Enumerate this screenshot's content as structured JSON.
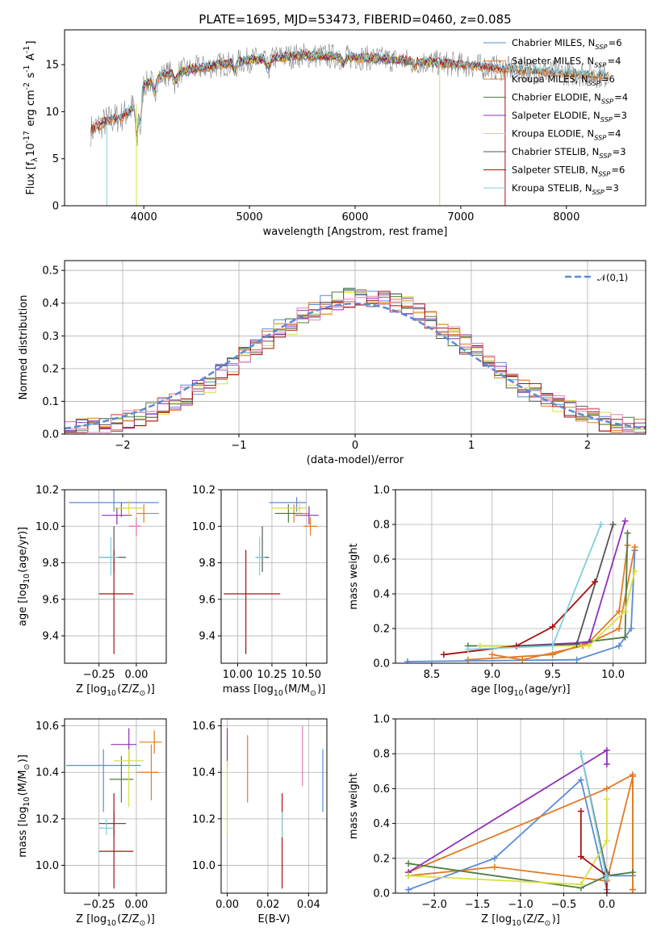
{
  "colors": {
    "Chabrier MILES": "#5b8bd6",
    "Salpeter MILES": "#e07b25",
    "Kroupa MILES": "#e07b25",
    "Chabrier ELODIE": "#4f7d44",
    "Salpeter ELODIE": "#8f30b6",
    "Kroupa ELODIE": "#d8e040",
    "Chabrier STELIB": "#555555",
    "Salpeter STELIB": "#a81010",
    "Kroupa STELIB": "#7fd0dc",
    "pink": "#e080c0",
    "normal": "#5b8bd6"
  },
  "chart_data": [
    {
      "type": "line",
      "title": "PLATE=1695, MJD=53473, FIBERID=0460, z=0.085",
      "xlabel": "wavelength [Angstrom, rest frame]",
      "ylabel": "Flux [f$_\\lambda$10$^{-17}$ erg cm$^{-2}$ s$^{-1}$ A$^{-1}$]",
      "xlim": [
        3250,
        8750
      ],
      "ylim": [
        0,
        18.7
      ],
      "xticks": [
        4000,
        5000,
        6000,
        7000,
        8000
      ],
      "yticks": [
        0,
        5,
        10,
        15
      ],
      "grid": false,
      "legend_position": "right",
      "continuum": [
        [
          3500,
          8.0
        ],
        [
          3650,
          9.0
        ],
        [
          3800,
          9.5
        ],
        [
          3950,
          11.0
        ],
        [
          4000,
          12.8
        ],
        [
          4200,
          14.0
        ],
        [
          4500,
          14.6
        ],
        [
          5000,
          15.5
        ],
        [
          5500,
          16.0
        ],
        [
          6000,
          15.8
        ],
        [
          6500,
          15.4
        ],
        [
          7000,
          15.0
        ],
        [
          7500,
          14.5
        ],
        [
          8000,
          14.1
        ],
        [
          8400,
          13.8
        ]
      ],
      "series": [
        {
          "name": "Chabrier MILES, N$_{SSP}$=6",
          "color_key": "Chabrier MILES",
          "range": [
            3500,
            8400
          ]
        },
        {
          "name": "Salpeter MILES, N$_{SSP}$=4",
          "color_key": "Salpeter MILES",
          "range": [
            3500,
            8400
          ]
        },
        {
          "name": "Kroupa MILES, N$_{SSP}$=6",
          "color_key": "Kroupa MILES",
          "range": [
            3500,
            8400
          ]
        },
        {
          "name": "Chabrier ELODIE, N$_{SSP}$=4",
          "color_key": "Chabrier ELODIE",
          "range": [
            4000,
            6800
          ]
        },
        {
          "name": "Salpeter ELODIE, N$_{SSP}$=3",
          "color_key": "Salpeter ELODIE",
          "range": [
            4000,
            6800
          ]
        },
        {
          "name": "Kroupa ELODIE, N$_{SSP}$=4",
          "color_key": "Kroupa ELODIE",
          "range": [
            3900,
            6800
          ]
        },
        {
          "name": "Chabrier STELIB, N$_{SSP}$=3",
          "color_key": "Chabrier STELIB",
          "range": [
            3500,
            8400
          ]
        },
        {
          "name": "Salpeter STELIB, N$_{SSP}$=6",
          "color_key": "Salpeter STELIB",
          "range": [
            3500,
            7400
          ]
        },
        {
          "name": "Kroupa STELIB, N$_{SSP}$=3",
          "color_key": "Kroupa STELIB",
          "range": [
            3650,
            8400
          ]
        }
      ]
    },
    {
      "type": "bar",
      "subtype": "step-histogram",
      "xlabel": "(data-model)/error",
      "ylabel": "Normed distribution",
      "xlim": [
        -2.5,
        2.5
      ],
      "ylim": [
        0,
        0.53
      ],
      "xticks": [
        -2,
        -1,
        0,
        1,
        2
      ],
      "yticks": [
        0.0,
        0.1,
        0.2,
        0.3,
        0.4,
        0.5
      ],
      "grid": true,
      "bin_width": 0.1,
      "bin_start": -2.5,
      "legend": "$\\mathcal{N}(0,1)$",
      "legend_position": "top-right",
      "normal_curve": {
        "mean": 0,
        "sigma": 1,
        "style": "dashed"
      }
    },
    {
      "type": "scatter",
      "subtype": "errorbar",
      "xlabel": "Z [log$_{10}$(Z/Z$_\\odot$)]",
      "ylabel": "age  [log$_{10}$(age/yr)]",
      "xlim": [
        -0.48,
        0.2
      ],
      "ylim": [
        9.25,
        10.2
      ],
      "xticks": [
        -0.25,
        0.0
      ],
      "yticks": [
        9.4,
        9.6,
        9.8,
        10.0,
        10.2
      ],
      "points": [
        {
          "c": "Chabrier MILES",
          "x": -0.15,
          "y": 10.13,
          "xerr": [
            0.3,
            0.3
          ],
          "yerr": [
            0.05,
            0.08
          ]
        },
        {
          "c": "Salpeter MILES",
          "x": 0.05,
          "y": 10.07,
          "xerr": [
            0.05,
            0.1
          ],
          "yerr": [
            0.05,
            0.05
          ]
        },
        {
          "c": "Kroupa MILES",
          "x": 0.0,
          "y": 10.0,
          "xerr": [
            0.05,
            0.03
          ],
          "yerr": [
            0.05,
            0.05
          ]
        },
        {
          "c": "Chabrier ELODIE",
          "x": -0.1,
          "y": 10.1,
          "xerr": [
            0.05,
            0.03
          ],
          "yerr": [
            0.05,
            0.03
          ]
        },
        {
          "c": "Salpeter ELODIE",
          "x": -0.13,
          "y": 10.06,
          "xerr": [
            0.1,
            0.1
          ],
          "yerr": [
            0.05,
            0.04
          ]
        },
        {
          "c": "Kroupa ELODIE",
          "x": -0.05,
          "y": 10.1,
          "xerr": [
            0.1,
            0.1
          ],
          "yerr": [
            0.04,
            0.04
          ]
        },
        {
          "c": "Chabrier STELIB",
          "x": -0.15,
          "y": 9.83,
          "xerr": [
            0.1,
            0.08
          ],
          "yerr": [
            0.08,
            0.17
          ]
        },
        {
          "c": "Salpeter STELIB",
          "x": -0.15,
          "y": 9.63,
          "xerr": [
            0.1,
            0.13
          ],
          "yerr": [
            0.33,
            0.24
          ]
        },
        {
          "c": "Kroupa STELIB",
          "x": -0.17,
          "y": 9.83,
          "xerr": [
            0.08,
            0.05
          ],
          "yerr": [
            0.1,
            0.11
          ]
        },
        {
          "c": "pink",
          "x": 0.0,
          "y": 10.0,
          "xerr": [
            0.05,
            0.03
          ],
          "yerr": [
            0.04,
            0.04
          ]
        }
      ]
    },
    {
      "type": "scatter",
      "subtype": "errorbar",
      "xlabel": "mass [log$_{10}$(M/M$_\\odot$)]",
      "ylabel": "",
      "xlim": [
        9.88,
        10.65
      ],
      "ylim": [
        9.25,
        10.2
      ],
      "xticks": [
        10.0,
        10.25,
        10.5
      ],
      "yticks": [
        9.4,
        9.6,
        9.8,
        10.0,
        10.2
      ],
      "points": [
        {
          "c": "Chabrier MILES",
          "x": 10.43,
          "y": 10.13,
          "xerr": [
            0.2,
            0.07
          ],
          "yerr": [
            0.05,
            0.03
          ]
        },
        {
          "c": "Salpeter MILES",
          "x": 10.41,
          "y": 10.07,
          "xerr": [
            0.13,
            0.11
          ],
          "yerr": [
            0.05,
            0.05
          ]
        },
        {
          "c": "Kroupa MILES",
          "x": 10.53,
          "y": 10.0,
          "xerr": [
            0.05,
            0.05
          ],
          "yerr": [
            0.05,
            0.05
          ]
        },
        {
          "c": "Chabrier ELODIE",
          "x": 10.37,
          "y": 10.07,
          "xerr": [
            0.1,
            0.1
          ],
          "yerr": [
            0.05,
            0.05
          ]
        },
        {
          "c": "Salpeter ELODIE",
          "x": 10.52,
          "y": 10.06,
          "xerr": [
            0.1,
            0.07
          ],
          "yerr": [
            0.05,
            0.05
          ]
        },
        {
          "c": "Kroupa ELODIE",
          "x": 10.45,
          "y": 10.1,
          "xerr": [
            0.2,
            0.05
          ],
          "yerr": [
            0.04,
            0.04
          ]
        },
        {
          "c": "Chabrier STELIB",
          "x": 10.18,
          "y": 9.83,
          "xerr": [
            0.05,
            0.05
          ],
          "yerr": [
            0.08,
            0.17
          ]
        },
        {
          "c": "Salpeter STELIB",
          "x": 10.06,
          "y": 9.63,
          "xerr": [
            0.16,
            0.25
          ],
          "yerr": [
            0.33,
            0.24
          ]
        },
        {
          "c": "Kroupa STELIB",
          "x": 10.16,
          "y": 9.83,
          "xerr": [
            0.03,
            0.04
          ],
          "yerr": [
            0.1,
            0.11
          ]
        }
      ]
    },
    {
      "type": "line",
      "xlabel": "age  [log$_{10}$(age/yr)]",
      "ylabel": "mass weight",
      "xlim": [
        8.2,
        10.27
      ],
      "ylim": [
        0,
        1.0
      ],
      "xticks": [
        8.5,
        9.0,
        9.5,
        10.0
      ],
      "yticks": [
        0.0,
        0.2,
        0.4,
        0.6,
        0.8,
        1.0
      ],
      "grid": true,
      "series": [
        {
          "c": "Chabrier MILES",
          "x": [
            8.3,
            9.7,
            10.05,
            10.15,
            10.18
          ],
          "y": [
            0.01,
            0.02,
            0.1,
            0.2,
            0.65
          ]
        },
        {
          "c": "Salpeter MILES",
          "x": [
            9.0,
            9.25,
            9.75,
            10.05,
            10.18
          ],
          "y": [
            0.05,
            0.02,
            0.1,
            0.2,
            0.67
          ]
        },
        {
          "c": "Kroupa MILES",
          "x": [
            8.8,
            9.5,
            9.8,
            10.05,
            10.12
          ],
          "y": [
            0.02,
            0.05,
            0.12,
            0.3,
            0.68
          ]
        },
        {
          "c": "Chabrier ELODIE",
          "x": [
            8.8,
            9.5,
            10.1,
            10.12
          ],
          "y": [
            0.1,
            0.1,
            0.15,
            0.75
          ]
        },
        {
          "c": "Salpeter ELODIE",
          "x": [
            9.2,
            9.8,
            10.1
          ],
          "y": [
            0.1,
            0.12,
            0.82
          ]
        },
        {
          "c": "Kroupa ELODIE",
          "x": [
            8.9,
            9.8,
            10.1,
            10.18
          ],
          "y": [
            0.1,
            0.1,
            0.3,
            0.53
          ]
        },
        {
          "c": "Chabrier STELIB",
          "x": [
            9.2,
            9.7,
            10.0
          ],
          "y": [
            0.1,
            0.11,
            0.8
          ]
        },
        {
          "c": "Salpeter STELIB",
          "x": [
            8.6,
            9.2,
            9.5,
            9.85
          ],
          "y": [
            0.05,
            0.1,
            0.21,
            0.47
          ]
        },
        {
          "c": "Kroupa STELIB",
          "x": [
            8.8,
            9.5,
            9.9
          ],
          "y": [
            0.08,
            0.1,
            0.8
          ]
        }
      ]
    },
    {
      "type": "scatter",
      "subtype": "errorbar",
      "xlabel": "Z [log$_{10}$(Z/Z$_\\odot$)]",
      "ylabel": "mass [log$_{10}$(M/M$_\\odot$)]",
      "xlim": [
        -0.48,
        0.2
      ],
      "ylim": [
        9.88,
        10.63
      ],
      "xticks": [
        -0.25,
        0.0
      ],
      "yticks": [
        10.0,
        10.2,
        10.4,
        10.6
      ],
      "points": [
        {
          "c": "Chabrier MILES",
          "x": -0.22,
          "y": 10.43,
          "xerr": [
            0.25,
            0.25
          ],
          "yerr": [
            0.2,
            0.07
          ]
        },
        {
          "c": "Salpeter MILES",
          "x": 0.1,
          "y": 10.4,
          "xerr": [
            0.1,
            0.05
          ],
          "yerr": [
            0.12,
            0.12
          ]
        },
        {
          "c": "Kroupa MILES",
          "x": 0.12,
          "y": 10.53,
          "xerr": [
            0.1,
            0.05
          ],
          "yerr": [
            0.05,
            0.05
          ]
        },
        {
          "c": "Chabrier ELODIE",
          "x": -0.1,
          "y": 10.37,
          "xerr": [
            0.08,
            0.08
          ],
          "yerr": [
            0.1,
            0.1
          ]
        },
        {
          "c": "Salpeter ELODIE",
          "x": -0.05,
          "y": 10.52,
          "xerr": [
            0.12,
            0.05
          ],
          "yerr": [
            0.1,
            0.07
          ]
        },
        {
          "c": "Kroupa ELODIE",
          "x": -0.05,
          "y": 10.45,
          "xerr": [
            0.1,
            0.1
          ],
          "yerr": [
            0.2,
            0.05
          ]
        },
        {
          "c": "Chabrier STELIB",
          "x": -0.15,
          "y": 10.18,
          "xerr": [
            0.1,
            0.08
          ],
          "yerr": [
            0.05,
            0.05
          ]
        },
        {
          "c": "Salpeter STELIB",
          "x": -0.15,
          "y": 10.06,
          "xerr": [
            0.1,
            0.13
          ],
          "yerr": [
            0.16,
            0.25
          ]
        },
        {
          "c": "Kroupa STELIB",
          "x": -0.2,
          "y": 10.16,
          "xerr": [
            0.05,
            0.05
          ],
          "yerr": [
            0.03,
            0.04
          ]
        }
      ]
    },
    {
      "type": "scatter",
      "subtype": "errorbar",
      "xlabel": "E(B-V)",
      "ylabel": "",
      "xlim": [
        -0.003,
        0.049
      ],
      "ylim": [
        9.88,
        10.63
      ],
      "xticks": [
        0.0,
        0.02,
        0.04
      ],
      "yticks": [
        10.0,
        10.2,
        10.4,
        10.6
      ],
      "points": [
        {
          "c": "Salpeter ELODIE",
          "x": 0.0,
          "y": 10.52,
          "xerr": [
            0,
            0
          ],
          "yerr": [
            0.1,
            0.07
          ]
        },
        {
          "c": "Kroupa ELODIE",
          "x": 0.0,
          "y": 10.3,
          "xerr": [
            0,
            0
          ],
          "yerr": [
            0.17,
            0.15
          ]
        },
        {
          "c": "Salpeter MILES",
          "x": 0.01,
          "y": 10.42,
          "xerr": [
            0,
            0
          ],
          "yerr": [
            0.15,
            0.14
          ]
        },
        {
          "c": "Salpeter STELIB",
          "x": 0.027,
          "y": 10.06,
          "xerr": [
            0,
            0
          ],
          "yerr": [
            0.16,
            0.25
          ]
        },
        {
          "c": "Kroupa STELIB",
          "x": 0.027,
          "y": 10.16,
          "xerr": [
            0,
            0
          ],
          "yerr": [
            0.04,
            0.07
          ]
        },
        {
          "c": "pink",
          "x": 0.037,
          "y": 10.47,
          "xerr": [
            0,
            0
          ],
          "yerr": [
            0.13,
            0.13
          ]
        },
        {
          "c": "Chabrier MILES",
          "x": 0.047,
          "y": 10.37,
          "xerr": [
            0,
            0
          ],
          "yerr": [
            0.14,
            0.13
          ]
        }
      ]
    },
    {
      "type": "line",
      "xlabel": "Z [log$_{10}$(Z/Z$_\\odot$)]",
      "ylabel": "mass weight",
      "xlim": [
        -2.45,
        0.45
      ],
      "ylim": [
        0,
        1.0
      ],
      "xticks": [
        -2.0,
        -1.5,
        -1.0,
        -0.5,
        0.0
      ],
      "yticks": [
        0.0,
        0.2,
        0.4,
        0.6,
        0.8,
        1.0
      ],
      "grid": true,
      "series": [
        {
          "c": "Chabrier MILES",
          "x": [
            -2.3,
            -1.3,
            -0.3,
            0.0,
            0.0,
            0.3
          ],
          "y": [
            0.02,
            0.2,
            0.65,
            0.02,
            0.1,
            0.1
          ]
        },
        {
          "c": "Salpeter MILES",
          "x": [
            -2.3,
            -1.3,
            0.0,
            0.3,
            0.3
          ],
          "y": [
            0.1,
            0.15,
            0.07,
            0.67,
            0.02
          ]
        },
        {
          "c": "Kroupa MILES",
          "x": [
            -2.3,
            0.0,
            0.3,
            0.3
          ],
          "y": [
            0.12,
            0.6,
            0.68,
            0.02
          ]
        },
        {
          "c": "Chabrier ELODIE",
          "x": [
            -2.3,
            -0.3,
            0.0,
            0.3
          ],
          "y": [
            0.17,
            0.03,
            0.1,
            0.12
          ]
        },
        {
          "c": "Salpeter ELODIE",
          "x": [
            -2.3,
            0.0,
            0.0
          ],
          "y": [
            0.12,
            0.82,
            0.74
          ]
        },
        {
          "c": "Kroupa ELODIE",
          "x": [
            -2.3,
            -0.3,
            0.0,
            0.0
          ],
          "y": [
            0.1,
            0.05,
            0.3,
            0.54
          ]
        },
        {
          "c": "Chabrier STELIB",
          "x": [
            -0.3,
            0.0,
            0.0
          ],
          "y": [
            0.8,
            0.11,
            0.12
          ]
        },
        {
          "c": "Salpeter STELIB",
          "x": [
            -0.3,
            -0.3,
            0.0,
            0.0
          ],
          "y": [
            0.47,
            0.21,
            0.1,
            0.0
          ]
        },
        {
          "c": "Kroupa STELIB",
          "x": [
            -0.3,
            0.0,
            0.0
          ],
          "y": [
            0.8,
            0.08,
            0.1
          ]
        }
      ]
    }
  ]
}
